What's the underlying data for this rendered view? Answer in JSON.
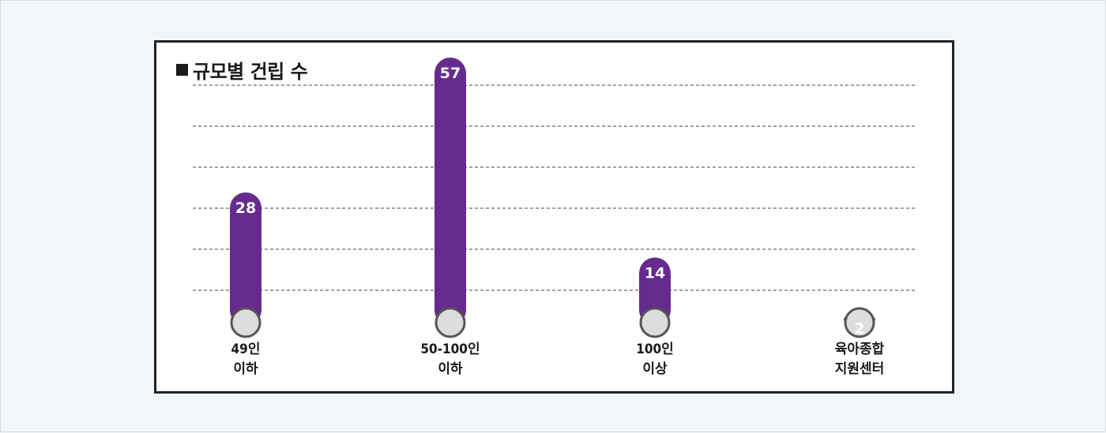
{
  "chart_data": {
    "type": "bar",
    "title": "규모별 건립 수",
    "categories": [
      [
        "49인",
        "이하"
      ],
      [
        "50-100인",
        "이하"
      ],
      [
        "100인",
        "이상"
      ],
      [
        "육아종합",
        "지원센터"
      ]
    ],
    "values": [
      28,
      57,
      14,
      2
    ],
    "ylim": [
      0,
      60
    ],
    "grid": true,
    "colors": {
      "bar": "#652b8f",
      "base_fill": "#dddddd",
      "base_stroke": "#555555",
      "grid": "#444444"
    }
  }
}
